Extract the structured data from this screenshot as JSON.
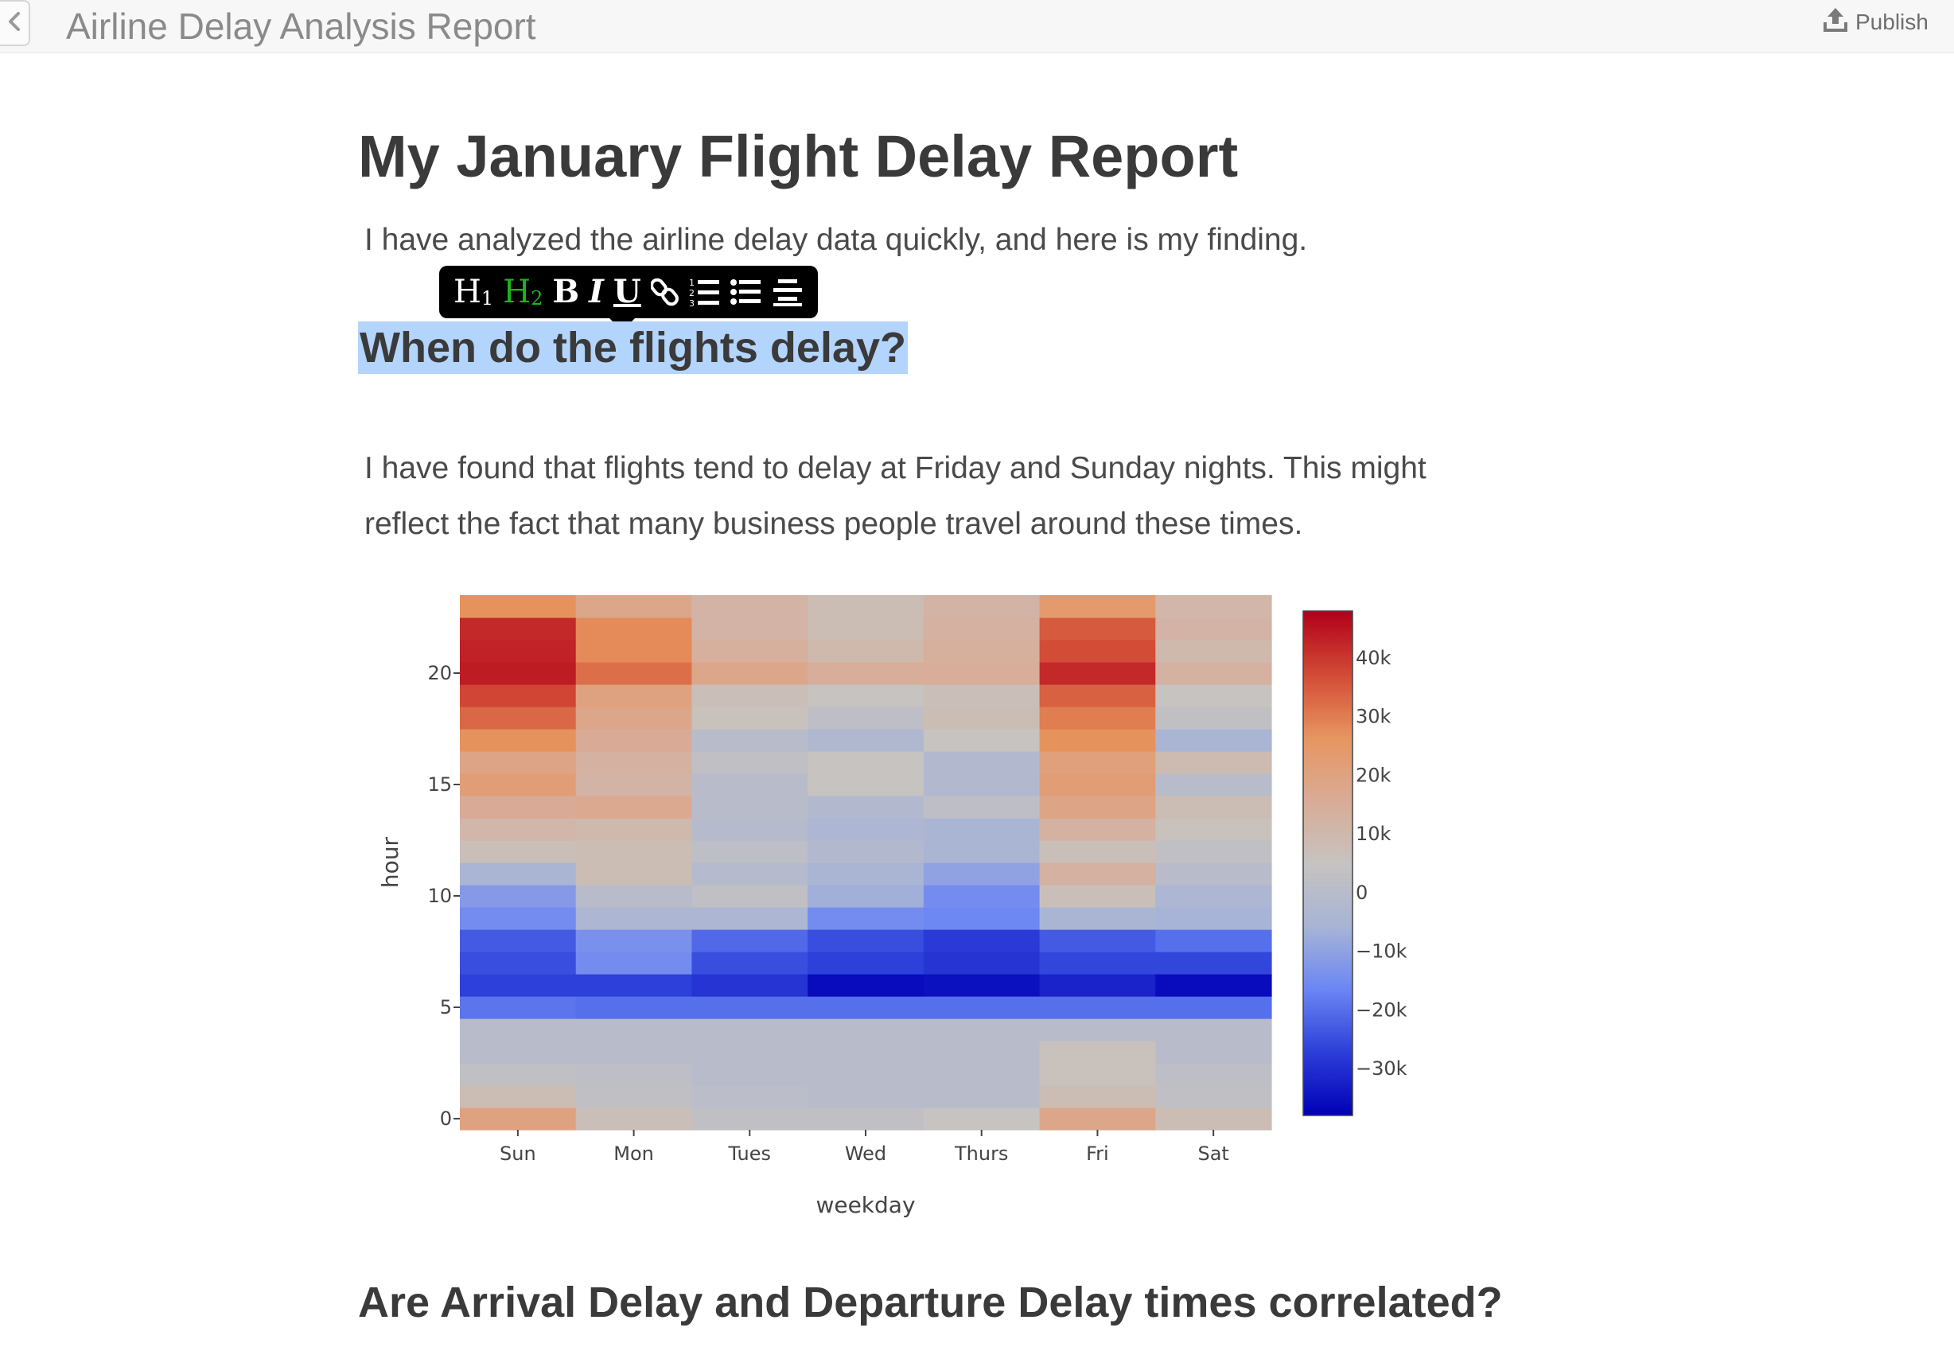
{
  "app": {
    "title": "Airline Delay Analysis Report",
    "publish_label": "Publish"
  },
  "icons": {
    "back": "chevron-left-icon",
    "publish": "upload-icon"
  },
  "document": {
    "title": "My January Flight Delay Report",
    "intro": "I have analyzed the airline delay data quickly, and here is my finding.",
    "section1_heading": "When do the flights delay?",
    "section1_paragraph": "I have found that flights tend to delay at Friday and Sunday nights. This might reflect the fact that many business people travel around these times.",
    "section2_heading": "Are Arrival Delay and Departure Delay times correlated?"
  },
  "toolbar": {
    "h1": "H",
    "h1_sub": "1",
    "h2": "H",
    "h2_sub": "2",
    "bold": "B",
    "italic": "I",
    "underline": "U",
    "active": "H2",
    "active_color": "#1db31d"
  },
  "chart_data": {
    "type": "heatmap",
    "title": "",
    "xlabel": "weekday",
    "ylabel": "hour",
    "categories": [
      "Sun",
      "Mon",
      "Tues",
      "Wed",
      "Thurs",
      "Fri",
      "Sat"
    ],
    "y": [
      0,
      1,
      2,
      3,
      4,
      5,
      6,
      7,
      8,
      9,
      10,
      11,
      12,
      13,
      14,
      15,
      16,
      17,
      18,
      19,
      20,
      21,
      22,
      23
    ],
    "y_ticks": [
      0,
      5,
      10,
      15,
      20
    ],
    "z": [
      [
        20000,
        7000,
        3000,
        3000,
        5000,
        18000,
        8000
      ],
      [
        8000,
        3000,
        1000,
        0,
        0,
        8000,
        3000
      ],
      [
        3000,
        2000,
        0,
        0,
        0,
        6000,
        2000
      ],
      [
        0,
        0,
        0,
        0,
        0,
        6000,
        0
      ],
      [
        0,
        0,
        0,
        0,
        0,
        0,
        0
      ],
      [
        -19000,
        -20000,
        -20000,
        -20000,
        -20000,
        -20000,
        -20000
      ],
      [
        -27000,
        -27000,
        -29000,
        -36000,
        -35000,
        -32000,
        -36000
      ],
      [
        -25000,
        -15000,
        -25000,
        -27000,
        -29000,
        -26000,
        -26000
      ],
      [
        -23000,
        -14000,
        -21000,
        -25000,
        -28000,
        -23000,
        -20000
      ],
      [
        -15000,
        -4000,
        -4000,
        -15000,
        -16000,
        -5000,
        -6000
      ],
      [
        -12000,
        0,
        3000,
        -7000,
        -15000,
        7000,
        -4000
      ],
      [
        -5000,
        8000,
        -1000,
        -5000,
        -10000,
        13000,
        0
      ],
      [
        7000,
        8000,
        2000,
        -2000,
        -5000,
        7000,
        3000
      ],
      [
        11000,
        10000,
        -1000,
        -4000,
        -5000,
        13000,
        6000
      ],
      [
        16000,
        17000,
        0,
        -2000,
        2000,
        19000,
        8000
      ],
      [
        22000,
        12000,
        0,
        5000,
        -2000,
        22000,
        0
      ],
      [
        19000,
        13000,
        3000,
        5000,
        -2000,
        21000,
        9000
      ],
      [
        27000,
        16000,
        0,
        -3000,
        5000,
        27000,
        -5000
      ],
      [
        33000,
        18000,
        6000,
        2000,
        8000,
        30000,
        3000
      ],
      [
        38000,
        20000,
        7000,
        5000,
        7000,
        34000,
        5000
      ],
      [
        44000,
        32000,
        18000,
        15000,
        15000,
        42000,
        13000
      ],
      [
        43000,
        28000,
        14000,
        10000,
        14000,
        37000,
        10000
      ],
      [
        42000,
        28000,
        12000,
        8000,
        13000,
        35000,
        12000
      ],
      [
        27000,
        18000,
        12000,
        8000,
        12000,
        24000,
        11000
      ]
    ],
    "colorscale": {
      "min": -38000,
      "max": 48000,
      "stops": [
        "#0000b5",
        "#2c3ed8",
        "#6b86f4",
        "#a8b4d6",
        "#c6c3c0",
        "#d9ab96",
        "#e7955f",
        "#d24a35",
        "#b0001a"
      ]
    },
    "colorbar_ticks": [
      "40k",
      "30k",
      "20k",
      "10k",
      "0",
      "−10k",
      "−20k",
      "−30k"
    ],
    "colorbar_tick_values": [
      40000,
      30000,
      20000,
      10000,
      0,
      -10000,
      -20000,
      -30000
    ],
    "grid": false,
    "legend": "colorbar-right"
  }
}
